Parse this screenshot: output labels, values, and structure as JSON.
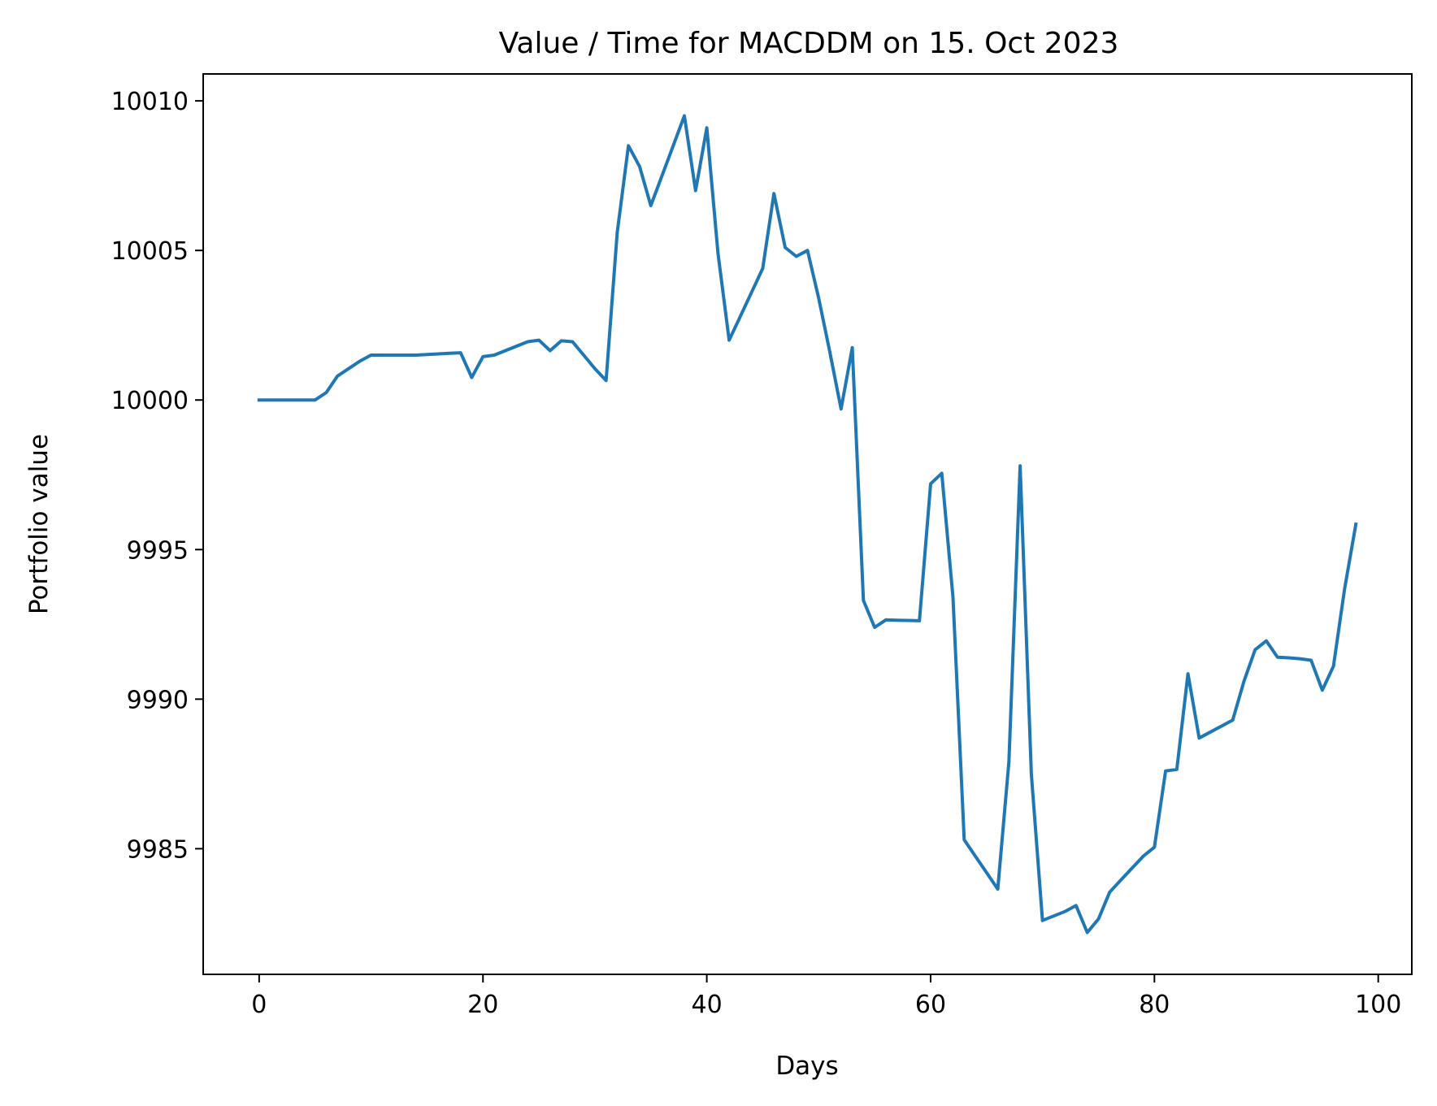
{
  "chart_data": {
    "type": "line",
    "title": "Value / Time for MACDDM on 15. Oct 2023",
    "xlabel": "Days",
    "ylabel": "Portfolio value",
    "xlim": [
      -5,
      103
    ],
    "ylim": [
      9980.8,
      10010.9
    ],
    "x_ticks": [
      0,
      20,
      40,
      60,
      80,
      100
    ],
    "y_ticks": [
      9985,
      9990,
      9995,
      10000,
      10005,
      10010
    ],
    "grid": false,
    "legend": "none",
    "series": [
      {
        "color": "#1f77b4",
        "points": [
          [
            0,
            10000.0
          ],
          [
            1,
            10000.0
          ],
          [
            2,
            10000.0
          ],
          [
            3,
            10000.0
          ],
          [
            4,
            10000.0
          ],
          [
            5,
            10000.0
          ],
          [
            6,
            10000.25
          ],
          [
            7,
            10000.8
          ],
          [
            8,
            10001.05
          ],
          [
            9,
            10001.3
          ],
          [
            10,
            10001.5
          ],
          [
            11,
            10001.5
          ],
          [
            12,
            10001.5
          ],
          [
            13,
            10001.5
          ],
          [
            14,
            10001.5
          ],
          [
            15,
            10001.52
          ],
          [
            16,
            10001.54
          ],
          [
            17,
            10001.56
          ],
          [
            18,
            10001.58
          ],
          [
            19,
            10000.75
          ],
          [
            20,
            10001.45
          ],
          [
            21,
            10001.5
          ],
          [
            22,
            10001.65
          ],
          [
            23,
            10001.8
          ],
          [
            24,
            10001.95
          ],
          [
            25,
            10002.0
          ],
          [
            26,
            10001.65
          ],
          [
            27,
            10001.98
          ],
          [
            28,
            10001.95
          ],
          [
            29,
            10001.5
          ],
          [
            30,
            10001.05
          ],
          [
            31,
            10000.65
          ],
          [
            32,
            10005.6
          ],
          [
            33,
            10008.5
          ],
          [
            34,
            10007.8
          ],
          [
            35,
            10006.5
          ],
          [
            36,
            10007.5
          ],
          [
            37,
            10008.5
          ],
          [
            38,
            10009.5
          ],
          [
            39,
            10007.0
          ],
          [
            40,
            10009.1
          ],
          [
            41,
            10004.9
          ],
          [
            42,
            10002.0
          ],
          [
            43,
            10002.8
          ],
          [
            44,
            10003.6
          ],
          [
            45,
            10004.4
          ],
          [
            46,
            10006.9
          ],
          [
            47,
            10005.1
          ],
          [
            48,
            10004.8
          ],
          [
            49,
            10005.0
          ],
          [
            50,
            10003.4
          ],
          [
            51,
            10001.6
          ],
          [
            52,
            9999.7
          ],
          [
            53,
            10001.75
          ],
          [
            54,
            9993.3
          ],
          [
            55,
            9992.4
          ],
          [
            56,
            9992.65
          ],
          [
            57,
            9992.64
          ],
          [
            58,
            9992.63
          ],
          [
            59,
            9992.62
          ],
          [
            60,
            9997.2
          ],
          [
            61,
            9997.55
          ],
          [
            62,
            9993.4
          ],
          [
            63,
            9985.3
          ],
          [
            64,
            9984.75
          ],
          [
            65,
            9984.2
          ],
          [
            66,
            9983.65
          ],
          [
            67,
            9987.9
          ],
          [
            68,
            9997.8
          ],
          [
            69,
            9987.5
          ],
          [
            70,
            9982.6
          ],
          [
            71,
            9982.75
          ],
          [
            72,
            9982.9
          ],
          [
            73,
            9983.1
          ],
          [
            74,
            9982.2
          ],
          [
            75,
            9982.65
          ],
          [
            76,
            9983.55
          ],
          [
            77,
            9983.95
          ],
          [
            78,
            9984.35
          ],
          [
            79,
            9984.75
          ],
          [
            80,
            9985.05
          ],
          [
            81,
            9987.6
          ],
          [
            82,
            9987.65
          ],
          [
            83,
            9990.85
          ],
          [
            84,
            9988.7
          ],
          [
            85,
            9988.9
          ],
          [
            86,
            9989.1
          ],
          [
            87,
            9989.3
          ],
          [
            88,
            9990.6
          ],
          [
            89,
            9991.65
          ],
          [
            90,
            9991.95
          ],
          [
            91,
            9991.4
          ],
          [
            92,
            9991.38
          ],
          [
            93,
            9991.35
          ],
          [
            94,
            9991.3
          ],
          [
            95,
            9990.3
          ],
          [
            96,
            9991.1
          ],
          [
            97,
            9993.7
          ],
          [
            98,
            9995.85
          ]
        ]
      }
    ]
  }
}
